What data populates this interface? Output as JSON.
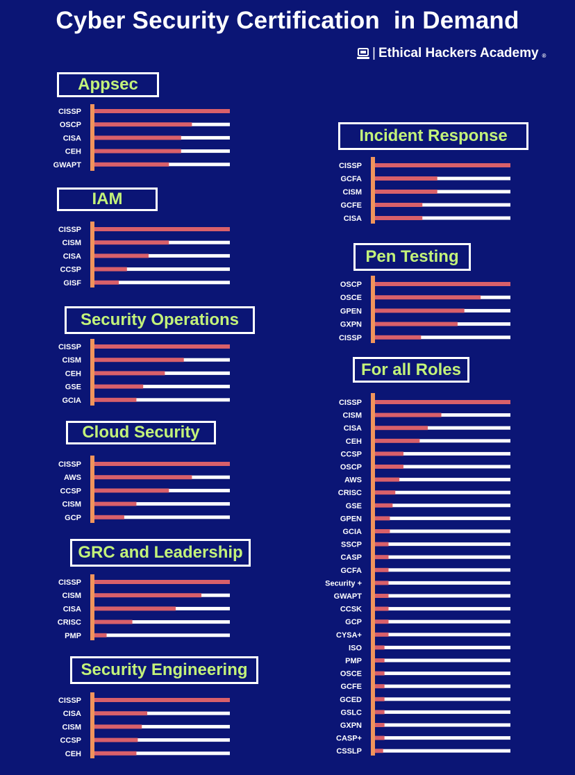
{
  "title": "Cyber Security Certification  in Demand",
  "brand": {
    "icon": "laptop-icon",
    "separator": "|",
    "name": "Ethical Hackers Academy",
    "registered": "®"
  },
  "colors": {
    "background": "#0b1575",
    "axis": "#f0945c",
    "bar": "#d9606a",
    "track": "#ffffff",
    "title_text": "#c3f27a"
  },
  "chart_data": [
    {
      "type": "bar",
      "orientation": "horizontal",
      "title": "Appsec",
      "categories": [
        "CISSP",
        "OSCP",
        "CISA",
        "CEH",
        "GWAPT"
      ],
      "values": [
        100,
        72,
        64,
        64,
        55
      ],
      "xlim": [
        0,
        100
      ]
    },
    {
      "type": "bar",
      "orientation": "horizontal",
      "title": "IAM",
      "categories": [
        "CISSP",
        "CISM",
        "CISA",
        "CCSP",
        "GISF"
      ],
      "values": [
        100,
        55,
        40,
        24,
        18
      ],
      "xlim": [
        0,
        100
      ]
    },
    {
      "type": "bar",
      "orientation": "horizontal",
      "title": "Security Operations",
      "categories": [
        "CISSP",
        "CISM",
        "CEH",
        "GSE",
        "GCIA"
      ],
      "values": [
        100,
        66,
        52,
        36,
        31
      ],
      "xlim": [
        0,
        100
      ]
    },
    {
      "type": "bar",
      "orientation": "horizontal",
      "title": "Cloud Security",
      "categories": [
        "CISSP",
        "AWS",
        "CCSP",
        "CISM",
        "GCP"
      ],
      "values": [
        100,
        72,
        55,
        31,
        22
      ],
      "xlim": [
        0,
        100
      ]
    },
    {
      "type": "bar",
      "orientation": "horizontal",
      "title": "GRC and Leadership",
      "categories": [
        "CISSP",
        "CISM",
        "CISA",
        "CRISC",
        "PMP"
      ],
      "values": [
        100,
        79,
        60,
        28,
        9
      ],
      "xlim": [
        0,
        100
      ]
    },
    {
      "type": "bar",
      "orientation": "horizontal",
      "title": "Security Engineering",
      "categories": [
        "CISSP",
        "CISA",
        "CISM",
        "CCSP",
        "CEH"
      ],
      "values": [
        100,
        39,
        35,
        32,
        31
      ],
      "xlim": [
        0,
        100
      ]
    },
    {
      "type": "bar",
      "orientation": "horizontal",
      "title": "Incident Response",
      "categories": [
        "CISSP",
        "GCFA",
        "CISM",
        "GCFE",
        "CISA"
      ],
      "values": [
        100,
        46,
        46,
        35,
        35
      ],
      "xlim": [
        0,
        100
      ]
    },
    {
      "type": "bar",
      "orientation": "horizontal",
      "title": "Pen Testing",
      "categories": [
        "OSCP",
        "OSCE",
        "GPEN",
        "GXPN",
        "CISSP"
      ],
      "values": [
        100,
        78,
        66,
        61,
        34
      ],
      "xlim": [
        0,
        100
      ]
    },
    {
      "type": "bar",
      "orientation": "horizontal",
      "title": "For all Roles",
      "categories": [
        "CISSP",
        "CISM",
        "CISA",
        "CEH",
        "CCSP",
        "OSCP",
        "AWS",
        "CRISC",
        "GSE",
        "GPEN",
        "GCIA",
        "SSCP",
        "CASP",
        "GCFA",
        "Security +",
        "GWAPT",
        "CCSK",
        "GCP",
        "CYSA+",
        "ISO",
        "PMP",
        "OSCE",
        "GCFE",
        "GCED",
        "GSLC",
        "GXPN",
        "CASP+",
        "CSSLP"
      ],
      "values": [
        100,
        49,
        39,
        33,
        21,
        21,
        18,
        15,
        13,
        11,
        11,
        10,
        10,
        10,
        10,
        10,
        10,
        10,
        10,
        7,
        7,
        7,
        7,
        7,
        7,
        7,
        7,
        6
      ],
      "xlim": [
        0,
        100
      ]
    }
  ]
}
